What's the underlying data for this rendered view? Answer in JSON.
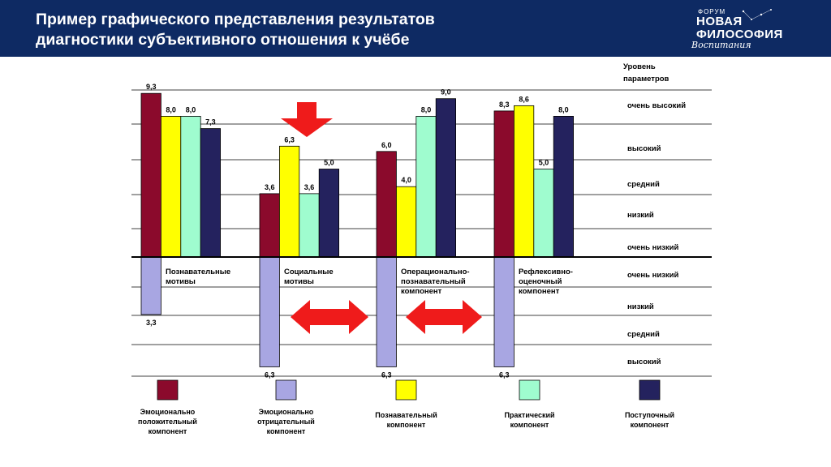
{
  "header": {
    "title_line1": "Пример графического представления результатов",
    "title_line2": "диагностики субъективного отношения к учёбе",
    "logo": {
      "line1": "ФОРУМ",
      "line2": "НОВАЯ",
      "line3": "ФИЛОСОФИЯ",
      "line4": "Воспитания"
    }
  },
  "colors": {
    "header_bg": "#0e2a63",
    "emotional_positive": "#8b0a2c",
    "emotional_negative": "#a8a6e2",
    "cognitive": "#ffff00",
    "practical": "#9ffccf",
    "behavioral": "#24225e",
    "arrow": "#ef1b1b"
  },
  "chart_data": {
    "type": "bar",
    "levels_title_line1": "Уровень",
    "levels_title_line2": "параметров",
    "upper_levels": [
      "очень высокий",
      "высокий",
      "средний",
      "низкий",
      "очень низкий"
    ],
    "lower_levels": [
      "очень низкий",
      "низкий",
      "средний",
      "высокий"
    ],
    "groups": [
      {
        "label_lines": [
          "Познавательные",
          "мотивы"
        ],
        "positive": [
          {
            "component": "Эмоционально положительный компонент",
            "value": 9.3,
            "label": "9,3"
          },
          {
            "component": "Познавательный компонент",
            "value": 8.0,
            "label": "8,0"
          },
          {
            "component": "Практический компонент",
            "value": 8.0,
            "label": "8,0"
          },
          {
            "component": "Поступочный компонент",
            "value": 7.3,
            "label": "7,3"
          }
        ],
        "negative": {
          "component": "Эмоционально отрицательный компонент",
          "value": 3.3,
          "label": "3,3"
        }
      },
      {
        "label_lines": [
          "Социальные",
          "мотивы"
        ],
        "positive": [
          {
            "component": "Эмоционально положительный компонент",
            "value": 3.6,
            "label": "3,6"
          },
          {
            "component": "Познавательный компонент",
            "value": 6.3,
            "label": "6,3"
          },
          {
            "component": "Практический компонент",
            "value": 3.6,
            "label": "3,6"
          },
          {
            "component": "Поступочный компонент",
            "value": 5.0,
            "label": "5,0"
          }
        ],
        "negative": {
          "component": "Эмоционально отрицательный компонент",
          "value": 6.3,
          "label": "6,3"
        }
      },
      {
        "label_lines": [
          "Операционально-",
          "познавательный",
          "компонент"
        ],
        "positive": [
          {
            "component": "Эмоционально положительный компонент",
            "value": 6.0,
            "label": "6,0"
          },
          {
            "component": "Познавательный компонент",
            "value": 4.0,
            "label": "4,0"
          },
          {
            "component": "Практический компонент",
            "value": 8.0,
            "label": "8,0"
          },
          {
            "component": "Поступочный компонент",
            "value": 9.0,
            "label": "9,0"
          }
        ],
        "negative": {
          "component": "Эмоционально отрицательный компонент",
          "value": 6.3,
          "label": "6,3"
        }
      },
      {
        "label_lines": [
          "Рефлексивно-",
          "оценочный",
          "компонент"
        ],
        "positive": [
          {
            "component": "Эмоционально положительный компонент",
            "value": 8.3,
            "label": "8,3"
          },
          {
            "component": "Познавательный компонент",
            "value": 8.6,
            "label": "8,6"
          },
          {
            "component": "Практический компонент",
            "value": 5.0,
            "label": "5,0"
          },
          {
            "component": "Поступочный компонент",
            "value": 8.0,
            "label": "8,0"
          }
        ],
        "negative": {
          "component": "Эмоционально отрицательный компонент",
          "value": 6.3,
          "label": "6,3"
        }
      }
    ],
    "legend": [
      {
        "lines": [
          "Эмоционально",
          "положительный",
          "компонент"
        ],
        "color": "#8b0a2c"
      },
      {
        "lines": [
          "Эмоционально",
          "отрицательный",
          "компонент"
        ],
        "color": "#a8a6e2"
      },
      {
        "lines": [
          "Познавательный",
          "компонент"
        ],
        "color": "#ffff00"
      },
      {
        "lines": [
          "Практический",
          "компонент"
        ],
        "color": "#9ffccf"
      },
      {
        "lines": [
          "Поступочный",
          "компонент"
        ],
        "color": "#24225e"
      }
    ]
  }
}
